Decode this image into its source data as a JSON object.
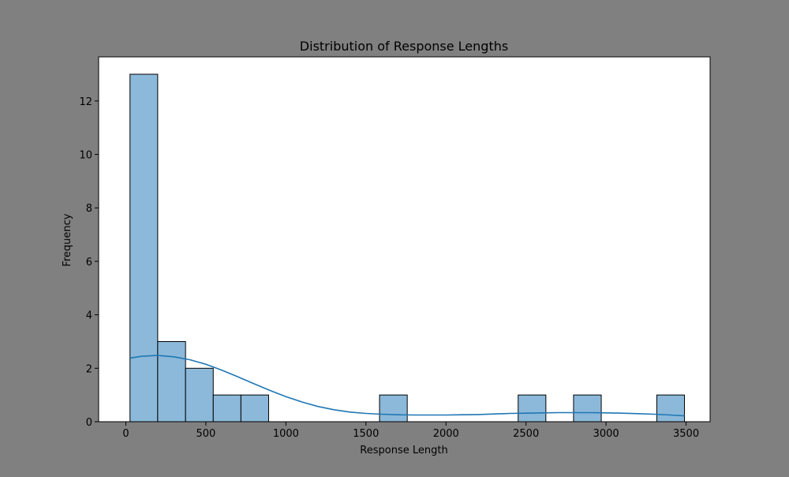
{
  "colors": {
    "figure_background": "#808080",
    "plot_background": "#ffffff",
    "bar_fill": "#8cb9da",
    "bar_edge": "#000000",
    "kde_line": "#1f77b4"
  },
  "chart_data": {
    "type": "bar",
    "subtype": "histogram-with-kde",
    "title": "Distribution of Response Lengths",
    "xlabel": "Response Length",
    "ylabel": "Frequency",
    "xlim": [
      -170,
      3650
    ],
    "ylim": [
      0,
      13.65
    ],
    "xticks": [
      0,
      500,
      1000,
      1500,
      2000,
      2500,
      3000,
      3500
    ],
    "yticks": [
      0,
      2,
      4,
      6,
      8,
      10,
      12
    ],
    "grid": false,
    "bins": [
      {
        "start": 26,
        "end": 199,
        "count": 13
      },
      {
        "start": 199,
        "end": 373,
        "count": 3
      },
      {
        "start": 373,
        "end": 546,
        "count": 2
      },
      {
        "start": 546,
        "end": 719,
        "count": 1
      },
      {
        "start": 719,
        "end": 892,
        "count": 1
      },
      {
        "start": 892,
        "end": 1065,
        "count": 0
      },
      {
        "start": 1065,
        "end": 1239,
        "count": 0
      },
      {
        "start": 1239,
        "end": 1412,
        "count": 0
      },
      {
        "start": 1412,
        "end": 1585,
        "count": 0
      },
      {
        "start": 1585,
        "end": 1758,
        "count": 1
      },
      {
        "start": 1758,
        "end": 1931,
        "count": 0
      },
      {
        "start": 1931,
        "end": 2104,
        "count": 0
      },
      {
        "start": 2104,
        "end": 2278,
        "count": 0
      },
      {
        "start": 2278,
        "end": 2451,
        "count": 0
      },
      {
        "start": 2451,
        "end": 2624,
        "count": 1
      },
      {
        "start": 2624,
        "end": 2797,
        "count": 0
      },
      {
        "start": 2797,
        "end": 2970,
        "count": 1
      },
      {
        "start": 2970,
        "end": 3144,
        "count": 0
      },
      {
        "start": 3144,
        "end": 3317,
        "count": 0
      },
      {
        "start": 3317,
        "end": 3490,
        "count": 1
      }
    ],
    "kde": {
      "x": [
        26,
        100,
        200,
        300,
        400,
        500,
        600,
        700,
        800,
        900,
        1000,
        1100,
        1200,
        1300,
        1400,
        1500,
        1600,
        1700,
        1800,
        1900,
        2000,
        2100,
        2200,
        2300,
        2400,
        2500,
        2600,
        2700,
        2800,
        2900,
        3000,
        3100,
        3200,
        3300,
        3400,
        3490
      ],
      "y": [
        2.38,
        2.45,
        2.48,
        2.43,
        2.32,
        2.15,
        1.93,
        1.68,
        1.42,
        1.17,
        0.94,
        0.74,
        0.57,
        0.45,
        0.36,
        0.31,
        0.28,
        0.26,
        0.25,
        0.25,
        0.25,
        0.26,
        0.27,
        0.29,
        0.31,
        0.32,
        0.33,
        0.34,
        0.34,
        0.34,
        0.33,
        0.32,
        0.3,
        0.28,
        0.25,
        0.22
      ]
    }
  }
}
